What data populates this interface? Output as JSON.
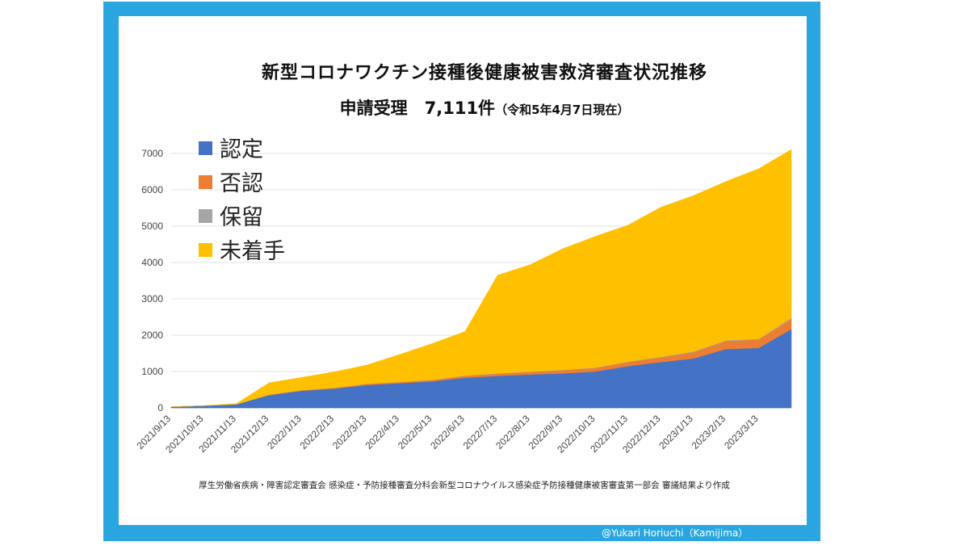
{
  "title": "新型コロナワクチン接種後健康被害救済審査状況推移",
  "subtitle": {
    "main": "申請受理　7,111件",
    "note": "（令和5年4月7日現在）"
  },
  "source_text": "厚生労働省疾病・障害認定審査会 感染症・予防接種審査分科会新型コロナウイルス感染症予防接種健康被害審査第一部会 審議結果より作成",
  "credit": "@Yukari Horiuchi（Kamijima）",
  "colors": {
    "frame": "#29a6e0",
    "recognized": "#4472c4",
    "denied": "#ed7d31",
    "pending": "#a5a5a5",
    "unstarted": "#ffc000"
  },
  "chart_data": {
    "type": "area",
    "stacked": true,
    "x": [
      "2021/9/13",
      "2021/10/13",
      "2021/11/13",
      "2021/12/13",
      "2022/1/13",
      "2022/2/13",
      "2022/3/13",
      "2022/4/13",
      "2022/5/13",
      "2022/6/13",
      "2022/7/13",
      "2022/8/13",
      "2022/9/13",
      "2022/10/13",
      "2022/11/13",
      "2022/12/13",
      "2023/1/13",
      "2023/2/13",
      "2023/3/13",
      "2023/4/7"
    ],
    "xticks": [
      "2021/9/13",
      "2021/10/13",
      "2021/11/13",
      "2021/12/13",
      "2022/1/13",
      "2022/2/13",
      "2022/3/13",
      "2022/4/13",
      "2022/5/13",
      "2022/6/13",
      "2022/7/13",
      "2022/8/13",
      "2022/9/13",
      "2022/10/13",
      "2022/11/13",
      "2022/12/13",
      "2023/1/13",
      "2023/2/13",
      "2023/3/13"
    ],
    "series": [
      {
        "name": "認定",
        "color": "#4472c4",
        "values": [
          29,
          60,
          100,
          350,
          470,
          530,
          630,
          680,
          730,
          830,
          880,
          920,
          950,
          1000,
          1150,
          1260,
          1360,
          1620,
          1650,
          2170
        ]
      },
      {
        "name": "否認",
        "color": "#ed7d31",
        "values": [
          0,
          0,
          0,
          10,
          15,
          20,
          30,
          30,
          35,
          50,
          60,
          70,
          85,
          100,
          110,
          130,
          170,
          220,
          230,
          280
        ]
      },
      {
        "name": "保留",
        "color": "#a5a5a5",
        "values": [
          0,
          0,
          0,
          5,
          5,
          5,
          5,
          5,
          10,
          10,
          10,
          10,
          10,
          10,
          15,
          15,
          20,
          20,
          20,
          30
        ]
      },
      {
        "name": "未着手",
        "color": "#ffc000",
        "values": [
          0,
          0,
          20,
          325,
          350,
          435,
          515,
          755,
          995,
          1210,
          2700,
          2940,
          3335,
          3610,
          3755,
          4115,
          4290,
          4370,
          4680,
          4631
        ]
      }
    ],
    "ylim": [
      0,
      7000
    ],
    "yticks": [
      0,
      1000,
      2000,
      3000,
      4000,
      5000,
      6000,
      7000
    ],
    "grid": true,
    "legend_position": "top-left"
  }
}
